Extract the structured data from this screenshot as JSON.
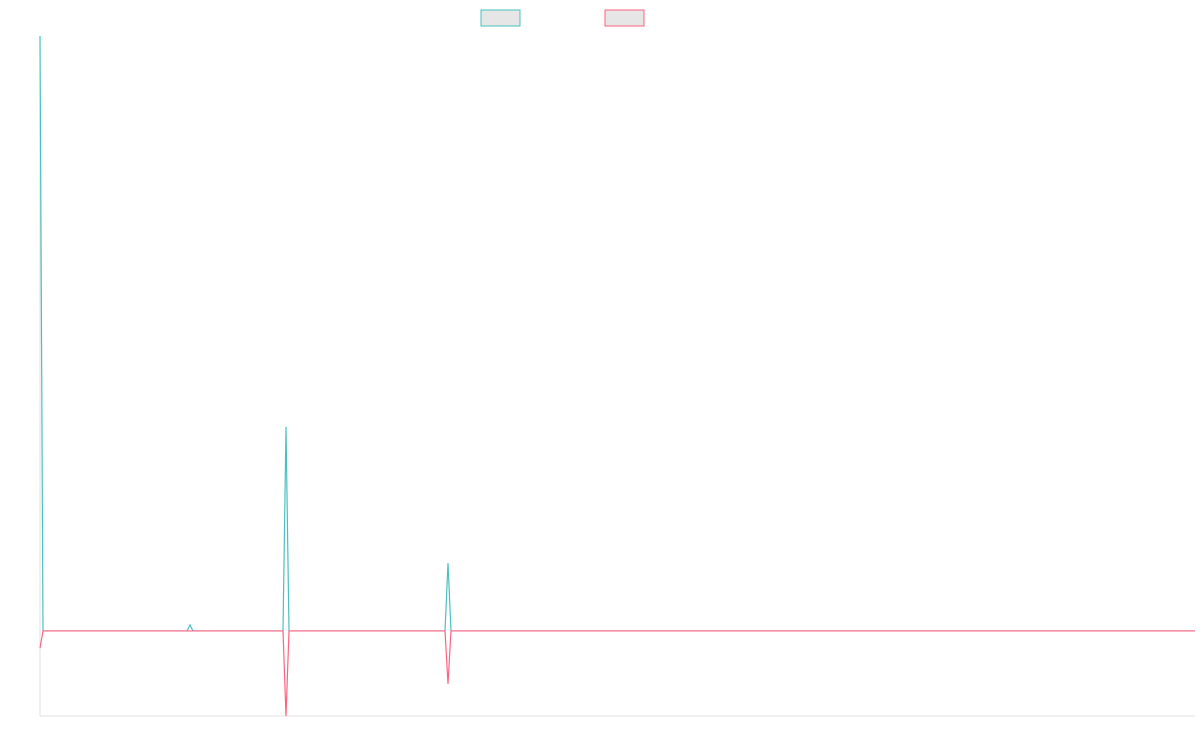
{
  "chart_data": {
    "type": "line",
    "x": [
      0,
      1,
      31,
      49,
      50,
      51,
      81,
      82,
      83,
      135,
      136,
      137,
      181,
      198,
      200,
      385
    ],
    "xlim": [
      0,
      385
    ],
    "ylim": [
      -14.3,
      100
    ],
    "series": [
      {
        "color": "#4bc0c0",
        "values": [
          100,
          0,
          0,
          0,
          1,
          0,
          0,
          34.3,
          0,
          0,
          11.4,
          0,
          0,
          0,
          0,
          0
        ]
      },
      {
        "color": "#ff6384",
        "values": [
          -2.9,
          0,
          0,
          0,
          0,
          0,
          0,
          -14.3,
          0,
          0,
          -8.9,
          0,
          0,
          0,
          0,
          0
        ]
      }
    ]
  }
}
